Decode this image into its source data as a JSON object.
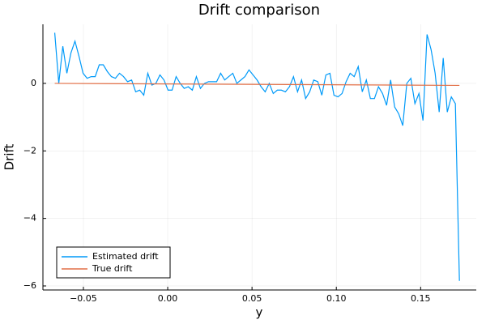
{
  "chart_data": {
    "type": "line",
    "title": "Drift comparison",
    "xlabel": "y",
    "ylabel": "Drift",
    "xlim": [
      -0.074,
      0.183
    ],
    "ylim": [
      -6.12,
      1.75
    ],
    "xticks": [
      {
        "value": -0.05,
        "label": "−0.05"
      },
      {
        "value": 0,
        "label": "0.00"
      },
      {
        "value": 0.05,
        "label": "0.05"
      },
      {
        "value": 0.1,
        "label": "0.10"
      },
      {
        "value": 0.15,
        "label": "0.15"
      }
    ],
    "yticks": [
      {
        "value": -6,
        "label": "−6"
      },
      {
        "value": -4,
        "label": "−4"
      },
      {
        "value": -2,
        "label": "−2"
      },
      0
    ],
    "grid": true,
    "legend": "bottom-left",
    "series": [
      {
        "name": "Estimated drift",
        "color": "#009af9",
        "x": [
          -0.067,
          -0.0646,
          -0.0622,
          -0.0598,
          -0.0574,
          -0.055,
          -0.0526,
          -0.0502,
          -0.0478,
          -0.0454,
          -0.043,
          -0.0406,
          -0.0382,
          -0.0358,
          -0.0334,
          -0.031,
          -0.0286,
          -0.0262,
          -0.0238,
          -0.0214,
          -0.019,
          -0.0166,
          -0.0142,
          -0.0118,
          -0.0094,
          -0.007,
          -0.0046,
          -0.0022,
          0.0002,
          0.0026,
          0.005,
          0.0074,
          0.0098,
          0.0122,
          0.0146,
          0.017,
          0.0194,
          0.0218,
          0.0242,
          0.0266,
          0.029,
          0.0314,
          0.0338,
          0.0362,
          0.0386,
          0.041,
          0.0434,
          0.0458,
          0.0482,
          0.0506,
          0.053,
          0.0554,
          0.0578,
          0.0602,
          0.0626,
          0.065,
          0.0674,
          0.0698,
          0.0722,
          0.0746,
          0.077,
          0.0794,
          0.0818,
          0.0842,
          0.0866,
          0.089,
          0.0914,
          0.0938,
          0.0962,
          0.0986,
          0.101,
          0.1034,
          0.1058,
          0.1082,
          0.1106,
          0.113,
          0.1154,
          0.1178,
          0.1202,
          0.1226,
          0.125,
          0.1274,
          0.1298,
          0.1322,
          0.1346,
          0.137,
          0.1394,
          0.1418,
          0.1442,
          0.1466,
          0.149,
          0.1514,
          0.1538,
          0.1562,
          0.1586,
          0.161,
          0.1634,
          0.1658,
          0.1682,
          0.1706,
          0.173
        ],
        "values": [
          1.5,
          0.0,
          1.1,
          0.3,
          0.9,
          1.25,
          0.8,
          0.3,
          0.15,
          0.2,
          0.2,
          0.55,
          0.55,
          0.35,
          0.2,
          0.15,
          0.3,
          0.2,
          0.05,
          0.1,
          -0.25,
          -0.2,
          -0.35,
          0.3,
          -0.05,
          0.0,
          0.25,
          0.1,
          -0.2,
          -0.2,
          0.2,
          0.0,
          -0.15,
          -0.1,
          -0.2,
          0.2,
          -0.15,
          0.0,
          0.05,
          0.05,
          0.05,
          0.3,
          0.1,
          0.2,
          0.3,
          0.0,
          0.1,
          0.2,
          0.4,
          0.25,
          0.1,
          -0.1,
          -0.25,
          0.0,
          -0.3,
          -0.2,
          -0.2,
          -0.25,
          -0.1,
          0.2,
          -0.25,
          0.1,
          -0.45,
          -0.25,
          0.1,
          0.05,
          -0.35,
          0.25,
          0.3,
          -0.35,
          -0.4,
          -0.3,
          0.05,
          0.3,
          0.2,
          0.5,
          -0.25,
          0.1,
          -0.45,
          -0.45,
          -0.1,
          -0.3,
          -0.65,
          0.1,
          -0.7,
          -0.9,
          -1.25,
          0.0,
          0.15,
          -0.6,
          -0.3,
          -1.1,
          1.45,
          1.0,
          0.3,
          -0.85,
          0.75,
          -0.85,
          -0.4,
          -0.6,
          -5.85
        ]
      },
      {
        "name": "True drift",
        "color": "#e26f46",
        "x": [
          -0.067,
          0.173
        ],
        "values": [
          0.0,
          -0.06
        ]
      }
    ]
  }
}
